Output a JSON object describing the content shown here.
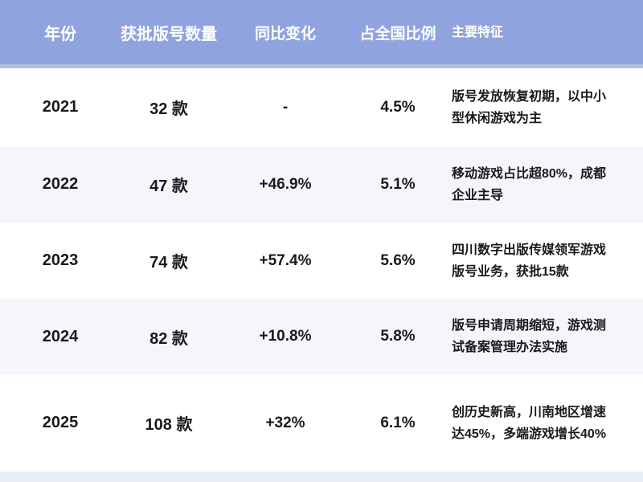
{
  "colors": {
    "header_bg": "#8FA4DE",
    "header_border": "#B3BEDC",
    "header_text": "#FFFFFF",
    "row_bg": "#FFFFFF",
    "row_alt_bg": "#F4F6FB",
    "footer_strip_bg": "#E9EDF5",
    "data_text": "#1A1A1A"
  },
  "table": {
    "headers": [
      "年份",
      "获批版号数量",
      "同比变化",
      "占全国比例",
      "主要特征"
    ],
    "rows": [
      {
        "year": "2021",
        "count": "32 款",
        "change": "-",
        "share": "4.5%",
        "features": "版号发放恢复初期，以中小型休闲游戏为主"
      },
      {
        "year": "2022",
        "count": "47 款",
        "change": "+46.9%",
        "share": "5.1%",
        "features": "移动游戏占比超80%，成都企业主导"
      },
      {
        "year": "2023",
        "count": "74 款",
        "change": "+57.4%",
        "share": "5.6%",
        "features": "四川数字出版传媒领军游戏版号业务，获批15款"
      },
      {
        "year": "2024",
        "count": "82 款",
        "change": "+10.8%",
        "share": "5.8%",
        "features": "版号申请周期缩短，游戏测试备案管理办法实施"
      },
      {
        "year": "2025",
        "count": "108 款",
        "change": "+32%",
        "share": "6.1%",
        "features": "创历史新高，川南地区增速达45%，多端游戏增长40%"
      }
    ]
  },
  "chart_data": {
    "type": "table",
    "columns": [
      "年份",
      "获批版号数量",
      "同比变化",
      "占全国比例",
      "主要特征"
    ],
    "rows": [
      [
        "2021",
        "32 款",
        "-",
        "4.5%",
        "版号发放恢复初期，以中小型休闲游戏为主"
      ],
      [
        "2022",
        "47 款",
        "+46.9%",
        "5.1%",
        "移动游戏占比超80%，成都企业主导"
      ],
      [
        "2023",
        "74 款",
        "+57.4%",
        "5.6%",
        "四川数字出版传媒领军游戏版号业务，获批15款"
      ],
      [
        "2024",
        "82 款",
        "+10.8%",
        "5.8%",
        "版号申请周期缩短，游戏测试备案管理办法实施"
      ],
      [
        "2025",
        "108 款",
        "+32%",
        "6.1%",
        "创历史新高，川南地区增速达45%，多端游戏增长40%"
      ]
    ],
    "numeric": {
      "years": [
        2021,
        2022,
        2023,
        2024,
        2025
      ],
      "approved_license_counts": [
        32,
        47,
        74,
        82,
        108
      ],
      "yoy_change_pct": [
        null,
        46.9,
        57.4,
        10.8,
        32
      ],
      "national_share_pct": [
        4.5,
        5.1,
        5.6,
        5.8,
        6.1
      ]
    }
  }
}
